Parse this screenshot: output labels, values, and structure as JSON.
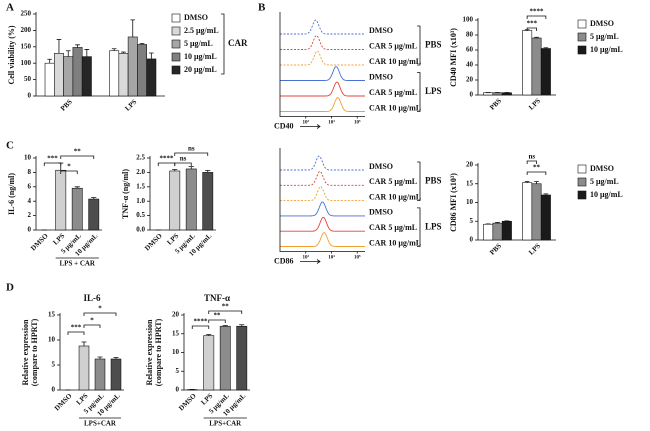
{
  "panel_labels": [
    "A",
    "B",
    "C",
    "D"
  ],
  "chart_data": [
    {
      "type": "grouped-bar",
      "ylabel": "Cell viability (%)",
      "categories": [
        "PBS",
        "LPS"
      ],
      "series": [
        {
          "name": "DMSO",
          "color": "#ffffff",
          "values": [
            100,
            138
          ],
          "errors": [
            12,
            6
          ]
        },
        {
          "name": "2.5 μg/mL",
          "color": "#d9d9d9",
          "values": [
            130,
            130
          ],
          "errors": [
            42,
            4
          ]
        },
        {
          "name": "5 μg/mL",
          "color": "#a6a6a6",
          "values": [
            120,
            180
          ],
          "errors": [
            18,
            52
          ]
        },
        {
          "name": "10 μg/mL",
          "color": "#7f7f7f",
          "values": [
            148,
            157
          ],
          "errors": [
            8,
            3
          ]
        },
        {
          "name": "20 μg/mL",
          "color": "#262626",
          "values": [
            120,
            113
          ],
          "errors": [
            22,
            18
          ]
        }
      ],
      "legend_group": "CAR",
      "ylim": [
        0,
        250
      ],
      "yticks": [
        0,
        50,
        100,
        150,
        200,
        250
      ]
    },
    {
      "type": "flow-histogram",
      "xlabel": "CD40",
      "log_scale": true,
      "xlim": [
        100,
        200000
      ],
      "xticks": [
        {
          "value": 1000,
          "label": "10³"
        },
        {
          "value": 10000,
          "label": "10⁴"
        },
        {
          "value": 100000,
          "label": "10⁵"
        }
      ],
      "groups": [
        {
          "name": "PBS",
          "series": [
            {
              "name": "DMSO",
              "color": "#4a6fd6",
              "dashed": true
            },
            {
              "name": "CAR 5 μg/mL",
              "color": "#e0443c",
              "dashed": true
            },
            {
              "name": "CAR 10 μg/mL",
              "color": "#f0a030",
              "dashed": true
            }
          ]
        },
        {
          "name": "LPS",
          "series": [
            {
              "name": "DMSO",
              "color": "#4a6fd6",
              "dashed": false
            },
            {
              "name": "CAR 5 μg/mL",
              "color": "#e0443c",
              "dashed": false
            },
            {
              "name": "CAR 10 μg/mL",
              "color": "#f0a030",
              "dashed": false
            }
          ]
        }
      ]
    },
    {
      "type": "grouped-bar",
      "ylabel": "CD40 MFI (x10³)",
      "categories": [
        "PBS",
        "LPS"
      ],
      "series": [
        {
          "name": "DMSO",
          "color": "#ffffff",
          "values": [
            3,
            86
          ],
          "errors": [
            0.3,
            1
          ]
        },
        {
          "name": "5 μg/mL",
          "color": "#8c8c8c",
          "values": [
            3,
            76
          ],
          "errors": [
            0.3,
            1
          ]
        },
        {
          "name": "10 μg/mL",
          "color": "#1a1a1a",
          "values": [
            3,
            62
          ],
          "errors": [
            0.3,
            1
          ]
        }
      ],
      "ylim": [
        0,
        100
      ],
      "yticks": [
        0,
        20,
        40,
        60,
        80,
        100
      ],
      "annotations": [
        "***",
        "****"
      ]
    },
    {
      "type": "flow-histogram",
      "xlabel": "CD86",
      "log_scale": true,
      "xlim": [
        100,
        200000
      ],
      "xticks": [
        {
          "value": 1000,
          "label": "10³"
        },
        {
          "value": 10000,
          "label": "10⁴"
        },
        {
          "value": 100000,
          "label": "10⁵"
        }
      ],
      "groups": [
        {
          "name": "PBS",
          "series": [
            {
              "name": "DMSO",
              "color": "#4a6fd6",
              "dashed": true
            },
            {
              "name": "CAR 5 μg/mL",
              "color": "#e0443c",
              "dashed": true
            },
            {
              "name": "CAR 10 μg/mL",
              "color": "#f0a030",
              "dashed": true
            }
          ]
        },
        {
          "name": "LPS",
          "series": [
            {
              "name": "DMSO",
              "color": "#4a6fd6",
              "dashed": false
            },
            {
              "name": "CAR 5 μg/mL",
              "color": "#e0443c",
              "dashed": false
            },
            {
              "name": "CAR 10 μg/mL",
              "color": "#f0a030",
              "dashed": false
            }
          ]
        }
      ]
    },
    {
      "type": "grouped-bar",
      "ylabel": "CD86 MFI (x10³)",
      "categories": [
        "PBS",
        "LPS"
      ],
      "series": [
        {
          "name": "DMSO",
          "color": "#ffffff",
          "values": [
            4.2,
            15.3
          ],
          "errors": [
            0.1,
            0.3
          ]
        },
        {
          "name": "5 μg/mL",
          "color": "#8c8c8c",
          "values": [
            4.5,
            15
          ],
          "errors": [
            0.2,
            0.6
          ]
        },
        {
          "name": "10 μg/mL",
          "color": "#1a1a1a",
          "values": [
            5,
            12
          ],
          "errors": [
            0.1,
            0.3
          ]
        }
      ],
      "ylim": [
        0,
        20
      ],
      "yticks": [
        0,
        5,
        10,
        15,
        20
      ],
      "annotations": [
        "ns",
        "**"
      ]
    },
    {
      "type": "bar",
      "ylabel": "IL-6 (ng/ml)",
      "categories": [
        "DMSO",
        "LPS",
        "5 μg/mL",
        "10 μg/mL"
      ],
      "values": [
        0,
        8.3,
        5.8,
        4.3
      ],
      "errors": [
        0,
        1,
        0.2,
        0.2
      ],
      "colors": [
        "#ffffff",
        "#d0d0d0",
        "#8c8c8c",
        "#4d4d4d"
      ],
      "group_label": "LPS + CAR",
      "ylim": [
        0,
        10
      ],
      "yticks": [
        0,
        2,
        4,
        6,
        8,
        10
      ],
      "annotations": [
        "***",
        "*",
        "**"
      ]
    },
    {
      "type": "bar",
      "ylabel": "TNF-α (ng/ml)",
      "categories": [
        "DMSO",
        "LPS",
        "5 μg/mL",
        "10 μg/mL"
      ],
      "values": [
        0,
        2.05,
        2.12,
        2.0
      ],
      "errors": [
        0,
        0.05,
        0.08,
        0.07
      ],
      "colors": [
        "#ffffff",
        "#d0d0d0",
        "#8c8c8c",
        "#4d4d4d"
      ],
      "ylim": [
        0,
        2.5
      ],
      "yticks": [
        {
          "value": 0,
          "label": "0.0"
        },
        0.5,
        {
          "value": 1,
          "label": "1.0"
        },
        1.5,
        {
          "value": 2,
          "label": "2.0"
        },
        2.5
      ],
      "annotations": [
        "****",
        "ns",
        "ns"
      ]
    },
    {
      "type": "bar",
      "title": "IL-6",
      "ylabel": [
        "Relative expression",
        "(compare to HPRT)"
      ],
      "categories": [
        "DMSO",
        "LPS",
        "5 μg/mL",
        "10 μg/mL"
      ],
      "values": [
        0,
        8.8,
        6.2,
        6.2
      ],
      "errors": [
        0,
        0.8,
        0.4,
        0.3
      ],
      "colors": [
        "#ffffff",
        "#d0d0d0",
        "#8c8c8c",
        "#4d4d4d"
      ],
      "group_label": "LPS+CAR",
      "ylim": [
        0,
        15
      ],
      "yticks": [
        0,
        5,
        10,
        15
      ],
      "annotations": [
        "***",
        "*",
        "*"
      ]
    },
    {
      "type": "bar",
      "title": "TNF-α",
      "ylabel": [
        "Relative expression",
        "(compare to HPRT)"
      ],
      "categories": [
        "DMSO",
        "LPS",
        "5 μg/mL",
        "10 μg/mL"
      ],
      "values": [
        0.1,
        14.5,
        17,
        17
      ],
      "errors": [
        0.05,
        0.3,
        0.2,
        0.4
      ],
      "colors": [
        "#ffffff",
        "#d0d0d0",
        "#8c8c8c",
        "#4d4d4d"
      ],
      "group_label": "LPS+CAR",
      "ylim": [
        0,
        20
      ],
      "yticks": [
        0,
        5,
        10,
        15,
        20
      ],
      "annotations": [
        "****",
        "**",
        "**"
      ]
    }
  ]
}
